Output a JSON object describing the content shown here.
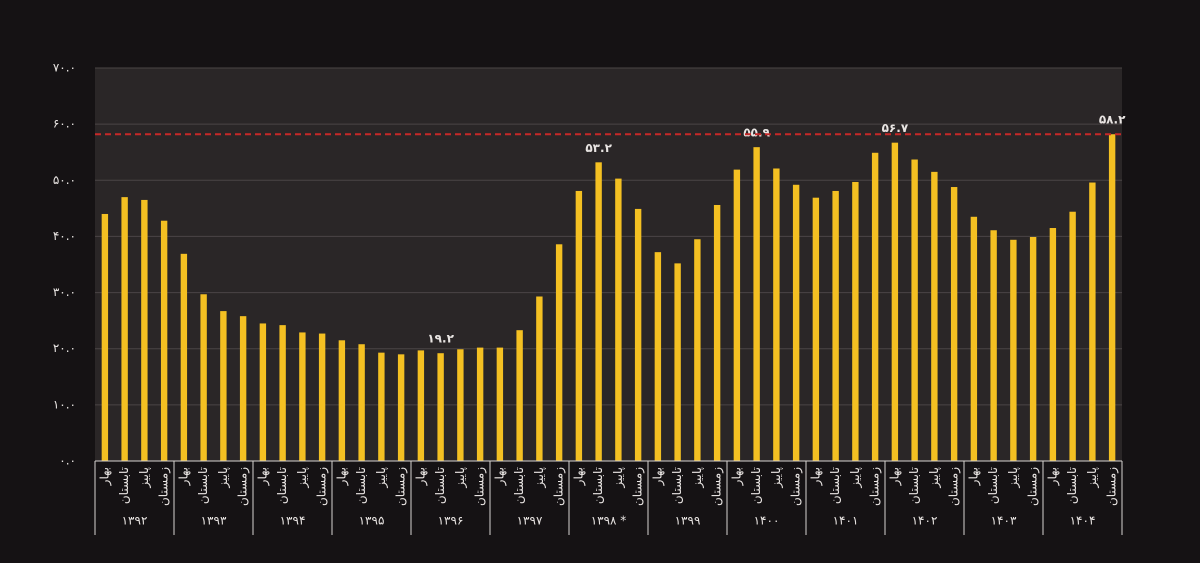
{
  "chart_data": {
    "type": "bar",
    "color": "#f4c022",
    "ylim": [
      0,
      70
    ],
    "yticks": [
      {
        "value": 0,
        "label": "۰.۰"
      },
      {
        "value": 10,
        "label": "۱۰.۰"
      },
      {
        "value": 20,
        "label": "۲۰.۰"
      },
      {
        "value": 30,
        "label": "۳۰.۰"
      },
      {
        "value": 40,
        "label": "۴۰.۰"
      },
      {
        "value": 50,
        "label": "۵۰.۰"
      },
      {
        "value": 60,
        "label": "۶۰.۰"
      },
      {
        "value": 70,
        "label": "۷۰.۰"
      }
    ],
    "grid": true,
    "reference_line": {
      "value": 58.2,
      "color": "#c62828"
    },
    "groups": [
      {
        "label": "۱۳۹۲",
        "categories": [
          "بهار",
          "تابستان",
          "پاییز",
          "زمستان"
        ],
        "values": [
          44.0,
          47.0,
          46.5,
          42.8
        ],
        "value_labels": [
          null,
          null,
          null,
          null
        ]
      },
      {
        "label": "۱۳۹۳",
        "categories": [
          "بهار",
          "تابستان",
          "پاییز",
          "زمستان"
        ],
        "values": [
          36.9,
          29.7,
          26.7,
          25.8
        ],
        "value_labels": [
          null,
          null,
          null,
          null
        ]
      },
      {
        "label": "۱۳۹۴",
        "categories": [
          "بهار",
          "تابستان",
          "پاییز",
          "زمستان"
        ],
        "values": [
          24.5,
          24.2,
          22.9,
          22.7
        ],
        "value_labels": [
          null,
          null,
          null,
          null
        ]
      },
      {
        "label": "۱۳۹۵",
        "categories": [
          "بهار",
          "تابستان",
          "پاییز",
          "زمستان"
        ],
        "values": [
          21.5,
          20.8,
          19.3,
          19.0
        ],
        "value_labels": [
          null,
          null,
          null,
          null
        ]
      },
      {
        "label": "۱۳۹۶",
        "categories": [
          "بهار",
          "تابستان",
          "پاییز",
          "زمستان"
        ],
        "values": [
          19.7,
          19.2,
          19.9,
          20.2
        ],
        "value_labels": [
          null,
          "۱۹.۲",
          null,
          null
        ]
      },
      {
        "label": "۱۳۹۷",
        "categories": [
          "بهار",
          "تابستان",
          "پاییز",
          "زمستان"
        ],
        "values": [
          20.2,
          23.3,
          29.3,
          38.6
        ],
        "value_labels": [
          null,
          null,
          null,
          null
        ]
      },
      {
        "label": "۱۳۹۸ *",
        "categories": [
          "بهار",
          "تابستان",
          "پاییز",
          "زمستان"
        ],
        "values": [
          48.1,
          53.2,
          50.3,
          44.9
        ],
        "value_labels": [
          null,
          "۵۳.۲",
          null,
          null
        ]
      },
      {
        "label": "۱۳۹۹",
        "categories": [
          "بهار",
          "تابستان",
          "پاییز",
          "زمستان"
        ],
        "values": [
          37.2,
          35.2,
          39.5,
          45.6
        ],
        "value_labels": [
          null,
          null,
          null,
          null
        ]
      },
      {
        "label": "۱۴۰۰",
        "categories": [
          "بهار",
          "تابستان",
          "پاییز",
          "زمستان"
        ],
        "values": [
          51.9,
          55.9,
          52.1,
          49.2
        ],
        "value_labels": [
          null,
          "۵۵.۹",
          null,
          null
        ]
      },
      {
        "label": "۱۴۰۱",
        "categories": [
          "بهار",
          "تابستان",
          "پاییز",
          "زمستان"
        ],
        "values": [
          46.9,
          48.1,
          49.7,
          54.9
        ],
        "value_labels": [
          null,
          null,
          null,
          null
        ]
      },
      {
        "label": "۱۴۰۲",
        "categories": [
          "بهار",
          "تابستان",
          "پاییز",
          "زمستان"
        ],
        "values": [
          56.7,
          53.7,
          51.5,
          48.8
        ],
        "value_labels": [
          "۵۶.۷",
          null,
          null,
          null
        ]
      },
      {
        "label": "۱۴۰۳",
        "categories": [
          "بهار",
          "تابستان",
          "پاییز",
          "زمستان"
        ],
        "values": [
          43.5,
          41.1,
          39.4,
          39.9
        ],
        "value_labels": [
          null,
          null,
          null,
          null
        ]
      },
      {
        "label": "۱۴۰۴",
        "categories": [
          "بهار",
          "تابستان",
          "پاییز",
          "زمستان"
        ],
        "values": [
          41.5,
          44.4,
          49.6,
          58.2
        ],
        "value_labels": [
          null,
          null,
          null,
          "۵۸.۲"
        ]
      }
    ]
  }
}
